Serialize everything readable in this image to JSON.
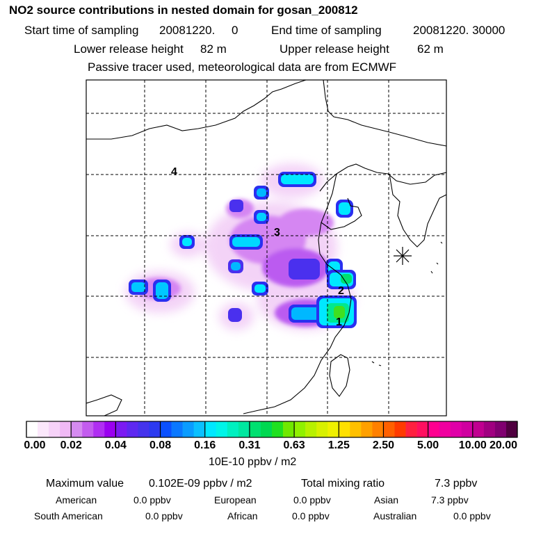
{
  "header": {
    "title": "NO2 source contributions in nested domain for gosan_200812",
    "start_label": "Start time of sampling",
    "start_value": "20081220.     0",
    "end_label": "End time of sampling",
    "end_value": "20081220. 30000",
    "lower_label": "Lower release height",
    "lower_value": "82 m",
    "upper_label": "Upper release height",
    "upper_value": "62 m",
    "note": "Passive tracer used, meteorological data are from ECMWF"
  },
  "map": {
    "region_labels": [
      "4",
      "3",
      "2",
      "1"
    ],
    "receptor_marker": "asterisk-icon"
  },
  "colorbar": {
    "labels": [
      "0.00",
      "0.02",
      "0.04",
      "0.08",
      "0.16",
      "0.31",
      "0.63",
      "1.25",
      "2.50",
      "5.00",
      "10.00",
      "20.00"
    ],
    "units": "10E-10 ppbv / m2",
    "colors": [
      "#ffffff",
      "#fbe7fb",
      "#f6d2f8",
      "#f0b9f5",
      "#d58bf0",
      "#c35cef",
      "#b02ef2",
      "#9a00f0",
      "#7b1af2",
      "#5e28f0",
      "#4533ec",
      "#2c3af0",
      "#0a50ff",
      "#0a78ff",
      "#0a9cff",
      "#0ac0ff",
      "#00e8ff",
      "#00f5e8",
      "#00f0c0",
      "#00e8a0",
      "#00e070",
      "#00d850",
      "#20e020",
      "#70e800",
      "#90f000",
      "#b8f000",
      "#d8f000",
      "#f0f000",
      "#ffe000",
      "#ffc000",
      "#ffa000",
      "#ff8000",
      "#ff6000",
      "#ff3a00",
      "#ff2040",
      "#ff1060",
      "#ff0090",
      "#f0009f",
      "#e000a8",
      "#d000a0",
      "#c00090",
      "#a00080",
      "#800070",
      "#500040"
    ]
  },
  "stats": {
    "max_label": "Maximum value",
    "max_value": "0.102E-09 ppbv / m2",
    "total_label": "Total mixing ratio",
    "total_value": "7.3 ppbv",
    "regions": [
      {
        "name": "American",
        "value": "0.0 ppbv"
      },
      {
        "name": "European",
        "value": "0.0 ppbv"
      },
      {
        "name": "Asian",
        "value": "7.3 ppbv"
      },
      {
        "name": "South American",
        "value": "0.0 ppbv"
      },
      {
        "name": "African",
        "value": "0.0 ppbv"
      },
      {
        "name": "Australian",
        "value": "0.0 ppbv"
      }
    ]
  }
}
